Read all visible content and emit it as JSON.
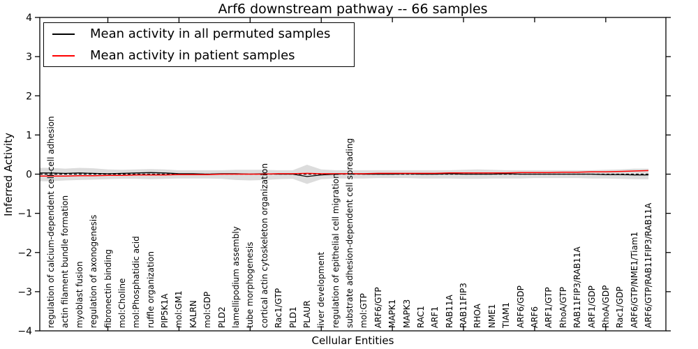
{
  "legend": {
    "items": [
      {
        "label": "Mean activity in all permuted samples",
        "color": "#000000"
      },
      {
        "label": "Mean activity in patient samples",
        "color": "#ff0000"
      }
    ]
  },
  "colors": {
    "permuted_line": "#000000",
    "patient_line": "#ff0000",
    "band": "#dcdcdc",
    "frame": "#000000",
    "zero_line": "#000000"
  },
  "chart_data": {
    "type": "line",
    "title": "Arf6 downstream pathway -- 66 samples",
    "xlabel": "Cellular Entities",
    "ylabel": "Inferred Activity",
    "ylim": [
      -4,
      4
    ],
    "yticks": [
      -4,
      -3,
      -2,
      -1,
      0,
      1,
      2,
      3,
      4
    ],
    "grid": false,
    "legend_position": "upper left",
    "zero_line": {
      "y": 0,
      "style": "dashed",
      "color": "#000000"
    },
    "categories": [
      "regulation of calcium-dependent cell-cell adhesion",
      "actin filament bundle formation",
      "myoblast fusion",
      "regulation of axonogenesis",
      "fibronectin binding",
      "mol:Choline",
      "mol:Phosphatidic acid",
      "ruffle organization",
      "PIP5K1A",
      "mol:GM1",
      "KALRN",
      "mol:GDP",
      "PLD2",
      "lamellipodium assembly",
      "tube morphogenesis",
      "cortical actin cytoskeleton organization",
      "Rac1/GTP",
      "PLD1",
      "PLAUR",
      "liver development",
      "regulation of epithelial cell migration",
      "substrate adhesion-dependent cell spreading",
      "mol:GTP",
      "ARF6/GTP",
      "MAPK1",
      "MAPK3",
      "RAC1",
      "ARF1",
      "RAB11A",
      "RAB11FIP3",
      "RHOA",
      "NME1",
      "TIAM1",
      "ARF6/GDP",
      "ARF6",
      "ARF1/GTP",
      "RhoA/GTP",
      "RAB11FIP3/RAB11A",
      "ARF1/GDP",
      "RhoA/GDP",
      "Rac1/GDP",
      "ARF6/GTP/NME1/Tiam1",
      "ARF6/GTP/RAB11FIP3/RAB11A"
    ],
    "series": [
      {
        "name": "Mean activity in all permuted samples",
        "color": "#000000",
        "values": [
          0.03,
          0.02,
          0.03,
          0.02,
          0.01,
          0.02,
          0.03,
          0.04,
          0.03,
          0.01,
          0.01,
          0.0,
          0.01,
          0.01,
          0.0,
          0.01,
          0.0,
          0.0,
          -0.06,
          -0.02,
          0.0,
          0.01,
          0.0,
          0.0,
          0.0,
          0.01,
          0.0,
          0.0,
          0.01,
          0.0,
          0.0,
          0.0,
          0.01,
          0.0,
          0.0,
          0.0,
          0.0,
          0.0,
          0.0,
          -0.01,
          -0.01,
          -0.02,
          -0.02
        ]
      },
      {
        "name": "Mean activity in patient samples",
        "color": "#ff0000",
        "values": [
          -0.05,
          -0.05,
          -0.04,
          -0.04,
          -0.03,
          -0.03,
          -0.02,
          -0.02,
          -0.02,
          -0.01,
          -0.01,
          -0.01,
          0.0,
          0.0,
          0.0,
          0.0,
          0.01,
          0.01,
          0.02,
          0.01,
          0.01,
          0.01,
          0.01,
          0.02,
          0.02,
          0.02,
          0.02,
          0.02,
          0.03,
          0.03,
          0.03,
          0.03,
          0.03,
          0.04,
          0.04,
          0.04,
          0.05,
          0.05,
          0.06,
          0.06,
          0.07,
          0.08,
          0.09
        ]
      }
    ],
    "band": {
      "name": "permuted activity spread",
      "color": "#dcdcdc",
      "upper": [
        0.16,
        0.14,
        0.16,
        0.15,
        0.12,
        0.11,
        0.12,
        0.13,
        0.12,
        0.1,
        0.1,
        0.1,
        0.1,
        0.11,
        0.11,
        0.11,
        0.1,
        0.1,
        0.24,
        0.12,
        0.1,
        0.1,
        0.1,
        0.1,
        0.1,
        0.1,
        0.1,
        0.1,
        0.1,
        0.11,
        0.12,
        0.11,
        0.1,
        0.1,
        0.1,
        0.1,
        0.1,
        0.1,
        0.1,
        0.11,
        0.12,
        0.14,
        0.14
      ],
      "lower": [
        -0.18,
        -0.16,
        -0.15,
        -0.14,
        -0.13,
        -0.12,
        -0.12,
        -0.13,
        -0.12,
        -0.11,
        -0.11,
        -0.11,
        -0.12,
        -0.15,
        -0.16,
        -0.15,
        -0.13,
        -0.12,
        -0.25,
        -0.13,
        -0.11,
        -0.11,
        -0.11,
        -0.1,
        -0.1,
        -0.1,
        -0.11,
        -0.11,
        -0.11,
        -0.12,
        -0.12,
        -0.11,
        -0.11,
        -0.11,
        -0.1,
        -0.1,
        -0.1,
        -0.1,
        -0.11,
        -0.11,
        -0.12,
        -0.13,
        -0.13
      ]
    }
  }
}
